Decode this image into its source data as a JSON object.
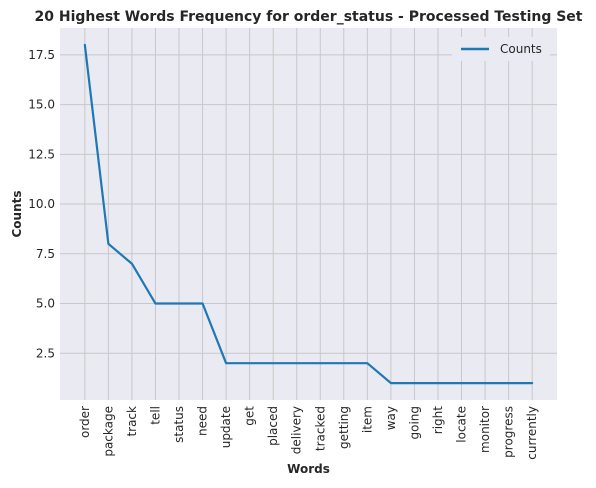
{
  "chart_data": {
    "type": "line",
    "title": "20 Highest Words Frequency for order_status - Processed Testing Set",
    "xlabel": "Words",
    "ylabel": "Counts",
    "categories": [
      "order",
      "package",
      "track",
      "tell",
      "status",
      "need",
      "update",
      "get",
      "placed",
      "delivery",
      "tracked",
      "getting",
      "item",
      "way",
      "going",
      "right",
      "locate",
      "monitor",
      "progress",
      "currently"
    ],
    "series": [
      {
        "name": "Counts",
        "values": [
          18,
          8,
          7,
          5,
          5,
          5,
          2,
          2,
          2,
          2,
          2,
          2,
          2,
          1,
          1,
          1,
          1,
          1,
          1,
          1
        ]
      }
    ],
    "yticks": [
      2.5,
      5.0,
      7.5,
      10.0,
      12.5,
      15.0,
      17.5
    ],
    "ytick_labels": [
      "2.5",
      "5.0",
      "7.5",
      "10.0",
      "12.5",
      "15.0",
      "17.5"
    ],
    "ylim": [
      0.15,
      18.85
    ],
    "grid": true,
    "legend_position": "top-right",
    "colors": {
      "line": "#1f77b4",
      "background": "#eaeaf2",
      "grid": "#c8c8c8"
    }
  }
}
